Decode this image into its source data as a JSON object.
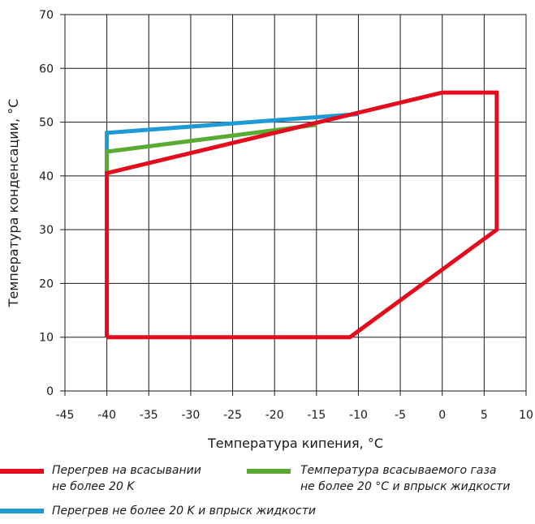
{
  "chart_data": {
    "type": "line",
    "xlabel": "Температура кипения, °C",
    "ylabel": "Температура конденсации, °C",
    "xlim": [
      -45,
      10
    ],
    "ylim": [
      0,
      70
    ],
    "x_ticks": [
      "-45",
      "-40",
      "-35",
      "-30",
      "-25",
      "-20",
      "-15",
      "-10",
      "-5",
      "0",
      "5",
      "10"
    ],
    "y_ticks": [
      "0",
      "10",
      "20",
      "30",
      "40",
      "50",
      "60",
      "70"
    ],
    "grid": true,
    "legend_position": "bottom",
    "series": [
      {
        "name": "Перегрев на всасывании\nне более 20 K",
        "color": "#e30b1c",
        "points": [
          [
            -40,
            10
          ],
          [
            -11,
            10
          ],
          [
            6.5,
            30
          ],
          [
            6.5,
            55.5
          ],
          [
            0,
            55.5
          ],
          [
            -40,
            40.5
          ],
          [
            -40,
            10
          ]
        ]
      },
      {
        "name": "Температура всасываемого газа\nне более 20 °C и впрыск жидкости",
        "color": "#5aab31",
        "points": [
          [
            -40,
            40.5
          ],
          [
            -40,
            44.5
          ],
          [
            -15,
            49.5
          ]
        ]
      },
      {
        "name": "Перегрев не более 20 K и впрыск жидкости",
        "color": "#1e9ad6",
        "points": [
          [
            -40,
            40.5
          ],
          [
            -40,
            48
          ],
          [
            -10,
            51.5
          ]
        ]
      }
    ]
  }
}
